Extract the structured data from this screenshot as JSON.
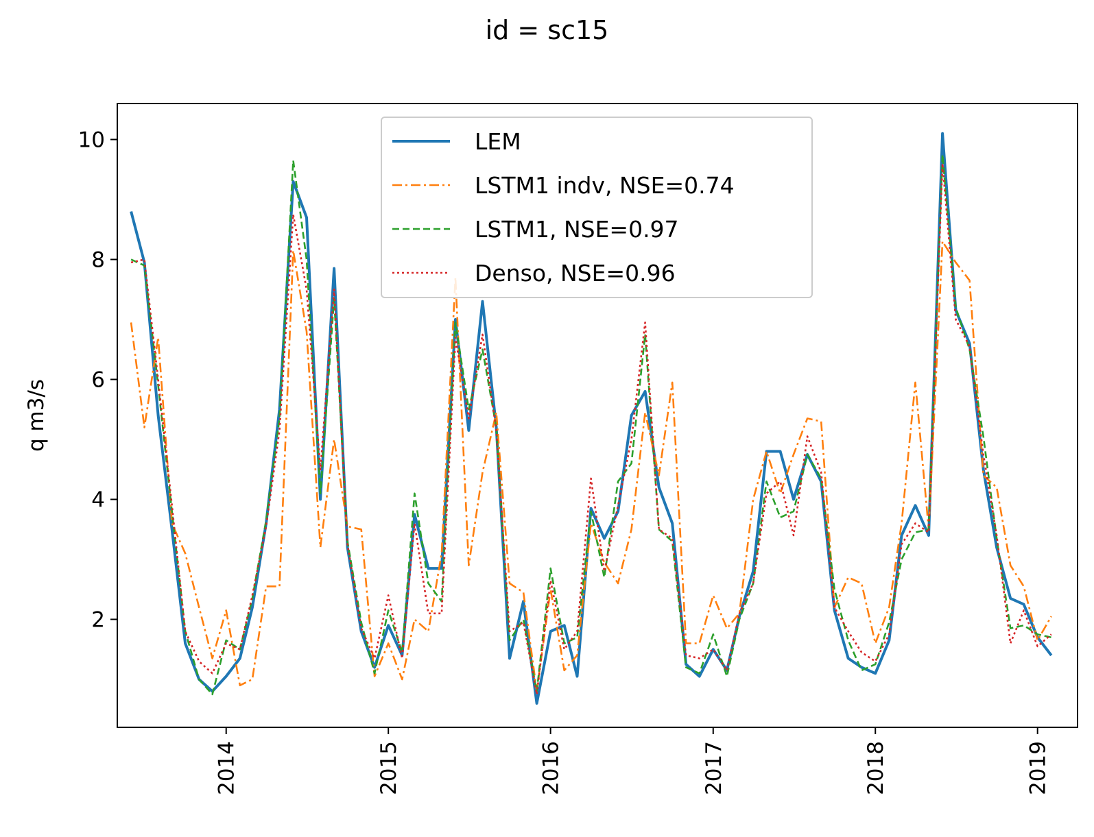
{
  "chart_data": {
    "type": "line",
    "title": "id = sc15",
    "xlabel": "",
    "ylabel": "q m3/s",
    "xlim": [
      "2013-05-01",
      "2019-04-01"
    ],
    "ylim": [
      0.2,
      10.6
    ],
    "x_ticks": [
      {
        "date": "2014-01-01",
        "label": "2014"
      },
      {
        "date": "2015-01-01",
        "label": "2015"
      },
      {
        "date": "2016-01-01",
        "label": "2016"
      },
      {
        "date": "2017-01-01",
        "label": "2017"
      },
      {
        "date": "2018-01-01",
        "label": "2018"
      },
      {
        "date": "2019-01-01",
        "label": "2019"
      }
    ],
    "y_ticks": [
      2,
      4,
      6,
      8,
      10
    ],
    "legend_position": "upper center",
    "grid": false,
    "x": [
      "2013-06-01",
      "2013-07-01",
      "2013-08-01",
      "2013-09-01",
      "2013-10-01",
      "2013-11-01",
      "2013-12-01",
      "2014-01-01",
      "2014-02-01",
      "2014-03-01",
      "2014-04-01",
      "2014-05-01",
      "2014-06-01",
      "2014-07-01",
      "2014-08-01",
      "2014-09-01",
      "2014-10-01",
      "2014-11-01",
      "2014-12-01",
      "2015-01-01",
      "2015-02-01",
      "2015-03-01",
      "2015-04-01",
      "2015-05-01",
      "2015-06-01",
      "2015-07-01",
      "2015-08-01",
      "2015-09-01",
      "2015-10-01",
      "2015-11-01",
      "2015-12-01",
      "2016-01-01",
      "2016-02-01",
      "2016-03-01",
      "2016-04-01",
      "2016-05-01",
      "2016-06-01",
      "2016-07-01",
      "2016-08-01",
      "2016-09-01",
      "2016-10-01",
      "2016-11-01",
      "2016-12-01",
      "2017-01-01",
      "2017-02-01",
      "2017-03-01",
      "2017-04-01",
      "2017-05-01",
      "2017-06-01",
      "2017-07-01",
      "2017-08-01",
      "2017-09-01",
      "2017-10-01",
      "2017-11-01",
      "2017-12-01",
      "2018-01-01",
      "2018-02-01",
      "2018-03-01",
      "2018-04-01",
      "2018-05-01",
      "2018-06-01",
      "2018-07-01",
      "2018-08-01",
      "2018-09-01",
      "2018-10-01",
      "2018-11-01",
      "2018-12-01",
      "2019-01-01",
      "2019-02-01"
    ],
    "series": [
      {
        "name": "LEM",
        "color": "#1f77b4",
        "style": "solid",
        "values": [
          8.8,
          7.95,
          5.4,
          3.5,
          1.6,
          1.0,
          0.8,
          1.05,
          1.35,
          2.2,
          3.6,
          5.5,
          9.3,
          8.7,
          4.0,
          7.85,
          3.2,
          1.8,
          1.2,
          1.9,
          1.4,
          3.75,
          2.85,
          2.85,
          7.0,
          5.15,
          7.3,
          5.2,
          1.35,
          2.3,
          0.6,
          1.8,
          1.9,
          1.05,
          3.85,
          3.35,
          3.8,
          5.4,
          5.8,
          4.2,
          3.6,
          1.25,
          1.05,
          1.5,
          1.15,
          2.05,
          2.8,
          4.8,
          4.8,
          4.0,
          4.75,
          4.3,
          2.15,
          1.35,
          1.2,
          1.1,
          1.65,
          3.4,
          3.9,
          3.4,
          10.1,
          7.15,
          6.6,
          4.5,
          3.2,
          2.35,
          2.25,
          1.7,
          1.4
        ]
      },
      {
        "name": "LSTM1 indv, NSE=0.74",
        "color": "#ff7f0e",
        "style": "dashdot",
        "values": [
          6.95,
          5.2,
          6.7,
          3.6,
          3.1,
          2.2,
          1.35,
          2.15,
          0.9,
          1.0,
          2.55,
          2.55,
          8.15,
          6.8,
          3.2,
          5.0,
          3.55,
          3.5,
          1.05,
          1.6,
          1.0,
          2.0,
          1.8,
          3.1,
          7.7,
          2.9,
          4.45,
          5.45,
          2.6,
          2.45,
          0.8,
          2.5,
          1.15,
          1.4,
          3.6,
          2.95,
          2.6,
          3.5,
          5.45,
          4.4,
          5.95,
          1.6,
          1.6,
          2.4,
          1.85,
          2.1,
          4.0,
          4.8,
          4.1,
          4.75,
          5.35,
          5.3,
          2.2,
          2.7,
          2.6,
          1.6,
          2.2,
          3.6,
          5.95,
          3.5,
          8.3,
          7.95,
          7.65,
          4.4,
          4.2,
          2.9,
          2.55,
          1.65,
          2.05
        ]
      },
      {
        "name": "LSTM1, NSE=0.97",
        "color": "#2ca02c",
        "style": "dashed",
        "values": [
          8.0,
          7.9,
          5.9,
          3.8,
          1.8,
          1.0,
          0.75,
          1.65,
          1.5,
          2.35,
          3.65,
          5.35,
          9.65,
          8.0,
          4.1,
          7.35,
          3.3,
          1.95,
          1.1,
          2.15,
          1.45,
          4.1,
          2.6,
          2.3,
          6.95,
          5.5,
          6.5,
          5.2,
          1.65,
          2.0,
          0.8,
          2.85,
          1.6,
          1.7,
          3.8,
          2.7,
          4.3,
          4.6,
          6.75,
          3.5,
          3.3,
          1.2,
          1.1,
          1.75,
          1.05,
          2.0,
          2.6,
          4.3,
          3.7,
          3.8,
          4.75,
          4.35,
          2.5,
          1.65,
          1.15,
          1.25,
          1.95,
          3.0,
          3.45,
          3.5,
          9.75,
          7.2,
          6.5,
          5.05,
          3.35,
          1.85,
          1.9,
          1.75,
          1.7
        ]
      },
      {
        "name": "Denso, NSE=0.96",
        "color": "#d62728",
        "style": "dotted",
        "values": [
          7.95,
          8.0,
          6.0,
          3.9,
          1.8,
          1.3,
          1.1,
          1.6,
          1.5,
          2.4,
          3.55,
          5.15,
          8.75,
          7.5,
          4.5,
          7.5,
          3.25,
          1.85,
          1.35,
          2.4,
          1.35,
          3.6,
          2.1,
          2.1,
          6.7,
          5.35,
          6.75,
          5.15,
          1.8,
          1.95,
          0.75,
          2.65,
          1.5,
          1.8,
          4.35,
          2.8,
          3.9,
          5.0,
          6.95,
          3.5,
          3.35,
          1.4,
          1.35,
          1.5,
          1.15,
          2.1,
          2.6,
          4.1,
          4.3,
          3.4,
          5.05,
          4.45,
          2.2,
          1.8,
          1.45,
          1.3,
          1.75,
          3.25,
          3.6,
          3.45,
          9.6,
          7.0,
          6.55,
          4.75,
          3.4,
          1.6,
          2.15,
          1.55,
          1.75
        ]
      }
    ]
  }
}
